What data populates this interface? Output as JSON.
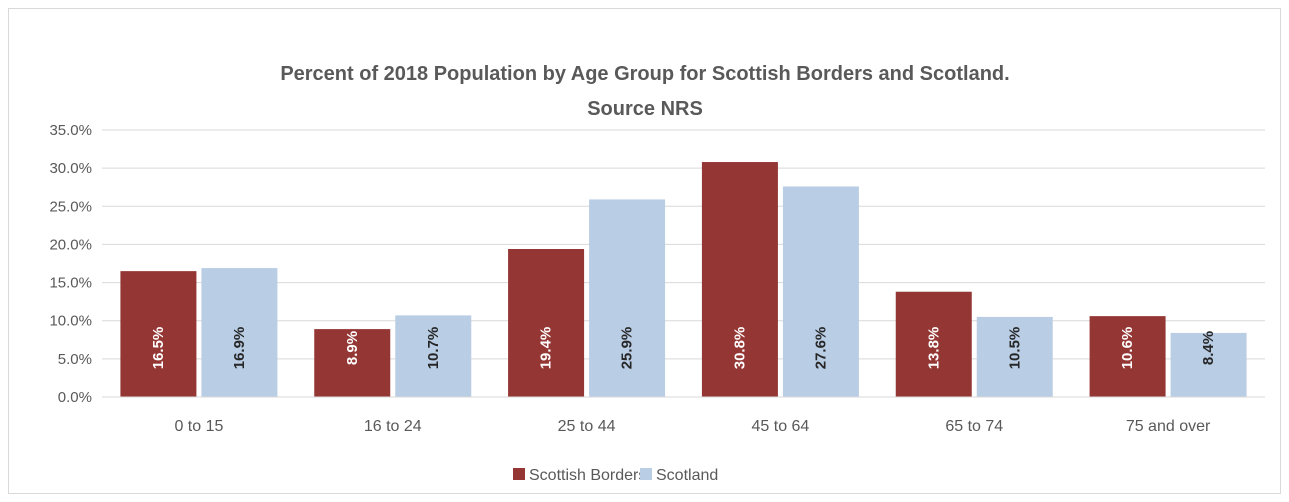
{
  "chart_data": {
    "type": "bar",
    "title_lines": [
      "Percent of 2018 Population by Age Group for Scottish Borders and Scotland.",
      "Source NRS"
    ],
    "categories": [
      "0 to 15",
      "16 to 24",
      "25 to 44",
      "45 to 64",
      "65 to 74",
      "75 and over"
    ],
    "series": [
      {
        "name": "Scottish Borders",
        "color": "#943634",
        "label_color": "#ffffff",
        "values": [
          16.5,
          8.9,
          19.4,
          30.8,
          13.8,
          10.6
        ],
        "labels": [
          "16.5%",
          "8.9%",
          "19.4%",
          "30.8%",
          "13.8%",
          "10.6%"
        ]
      },
      {
        "name": "Scotland",
        "color": "#b9cde5",
        "label_color": "#262626",
        "values": [
          16.9,
          10.7,
          25.9,
          27.6,
          10.5,
          8.4
        ],
        "labels": [
          "16.9%",
          "10.7%",
          "25.9%",
          "27.6%",
          "10.5%",
          "8.4%"
        ]
      }
    ],
    "y_ticks": [
      "0.0%",
      "5.0%",
      "10.0%",
      "15.0%",
      "20.0%",
      "25.0%",
      "30.0%",
      "35.0%"
    ],
    "ylim": [
      0,
      35
    ],
    "y_step": 5,
    "grid": true,
    "legend_position": "bottom"
  }
}
